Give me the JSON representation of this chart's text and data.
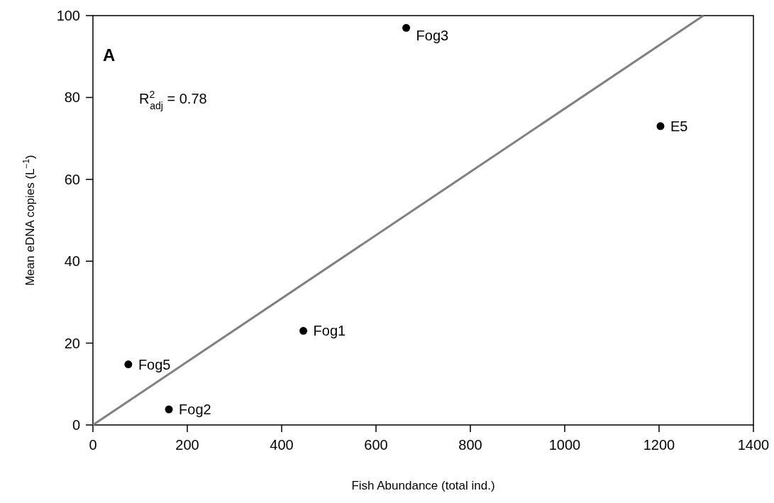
{
  "chart_data": {
    "type": "scatter",
    "xlabel": "Fish Abundance (total ind.)",
    "ylabel": "Mean eDNA copies (L$^{−1}$)",
    "xlim": [
      0,
      1400
    ],
    "xticks": [
      0,
      200,
      400,
      600,
      800,
      1000,
      1200,
      1400
    ],
    "ylim": [
      0,
      100
    ],
    "yticks": [
      0,
      20,
      40,
      60,
      80,
      100
    ],
    "grid": false,
    "series": [
      {
        "color": "#000000",
        "marker": "circle",
        "x": [
          75,
          161,
          446,
          664,
          1203
        ],
        "values": [
          14.8,
          3.8,
          23,
          97,
          73
        ]
      },
      {
        "type": "line",
        "color": "#808080",
        "line_style": "solid",
        "x": [
          0,
          1294
        ],
        "values": [
          0,
          100
        ]
      }
    ],
    "annotations": [
      "A",
      "R$^{2}$$_{adj}$ = 0.78",
      {
        "text": "Fog5",
        "x": 75,
        "y": 14.8
      },
      {
        "text": "Fog2",
        "x": 161,
        "y": 3.8
      },
      {
        "text": "Fog1",
        "x": 446,
        "y": 23
      },
      {
        "text": "Fog3",
        "x": 664,
        "y": 97
      },
      {
        "text": "E5",
        "x": 1203,
        "y": 73
      }
    ]
  }
}
